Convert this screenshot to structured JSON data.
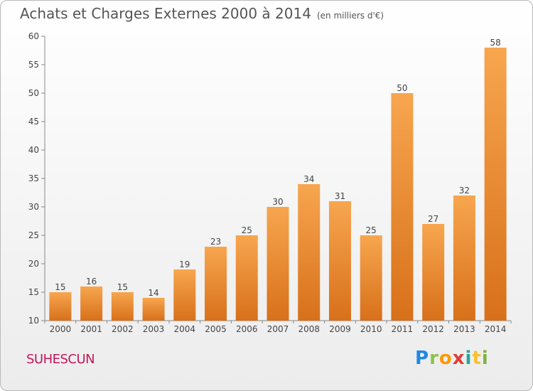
{
  "title": "Achats et Charges Externes 2000 à 2014",
  "subtitle": "(en milliers d'€)",
  "location": "SUHESCUN",
  "brand": {
    "letters": [
      "P",
      "r",
      "o",
      "x",
      "i",
      "t",
      "i"
    ],
    "colors": [
      "#1e88e5",
      "#8bc34a",
      "#ff9800",
      "#e53935",
      "#26a69a",
      "#fbc02d",
      "#7cb342"
    ]
  },
  "colors": {
    "bar_light": "#f7a64f",
    "bar_dark": "#d8701a",
    "axis_text": "#444444",
    "grid": "#dddddd"
  },
  "chart_data": {
    "type": "bar",
    "categories": [
      "2000",
      "2001",
      "2002",
      "2003",
      "2004",
      "2005",
      "2006",
      "2007",
      "2008",
      "2009",
      "2010",
      "2011",
      "2012",
      "2013",
      "2014"
    ],
    "values": [
      15,
      16,
      15,
      14,
      19,
      23,
      25,
      30,
      34,
      31,
      25,
      50,
      27,
      32,
      58
    ],
    "ylim": [
      10,
      60
    ],
    "yticks": [
      10,
      15,
      20,
      25,
      30,
      35,
      40,
      45,
      50,
      55,
      60
    ],
    "data_labels": true,
    "grid": false
  }
}
